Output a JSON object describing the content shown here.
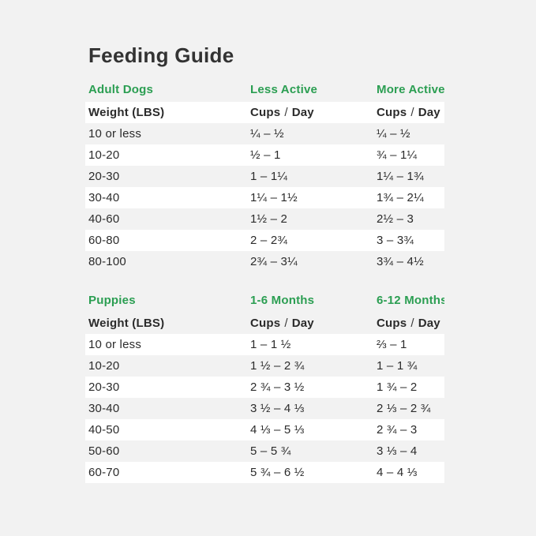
{
  "page": {
    "title": "Feeding Guide",
    "background_color": "#f2f2f2",
    "stripe_color": "#ffffff",
    "accent_green": "#2b9e52",
    "text_color": "#2b2b2b"
  },
  "labels": {
    "cups": "Cups",
    "slash": "/",
    "day": "Day"
  },
  "chart_data": [
    {
      "type": "table",
      "section_label": "Adult Dogs",
      "weight_header": "Weight (LBS)",
      "col_headers": [
        "Less Active",
        "More Active"
      ],
      "units": "Cups / Day",
      "rows": [
        [
          "10 or less",
          "¼ – ½",
          "¼ – ½"
        ],
        [
          "10-20",
          "½ – 1",
          "¾ – 1¼"
        ],
        [
          "20-30",
          "1 – 1¼",
          "1¼ – 1¾"
        ],
        [
          "30-40",
          "1¼ – 1½",
          "1¾ – 2¼"
        ],
        [
          "40-60",
          "1½ – 2",
          "2½ – 3"
        ],
        [
          "60-80",
          "2 – 2¾",
          "3 – 3¾"
        ],
        [
          "80-100",
          "2¾ – 3¼",
          "3¾ – 4½"
        ]
      ]
    },
    {
      "type": "table",
      "section_label": "Puppies",
      "weight_header": "Weight (LBS)",
      "col_headers": [
        "1-6 Months",
        "6-12 Months"
      ],
      "units": "Cups / Day",
      "rows": [
        [
          "10 or less",
          "1 – 1 ½",
          "⅔ – 1"
        ],
        [
          "10-20",
          "1 ½ – 2 ¾",
          "1 – 1 ¾"
        ],
        [
          "20-30",
          "2 ¾ – 3 ½",
          "1 ¾ – 2"
        ],
        [
          "30-40",
          "3 ½ – 4 ⅓",
          "2 ⅓ – 2 ¾"
        ],
        [
          "40-50",
          "4 ⅓ – 5 ⅓",
          "2 ¾ – 3"
        ],
        [
          "50-60",
          "5 – 5 ¾",
          "3 ⅓ – 4"
        ],
        [
          "60-70",
          "5 ¾ – 6 ½",
          "4 – 4 ⅓"
        ]
      ]
    }
  ]
}
